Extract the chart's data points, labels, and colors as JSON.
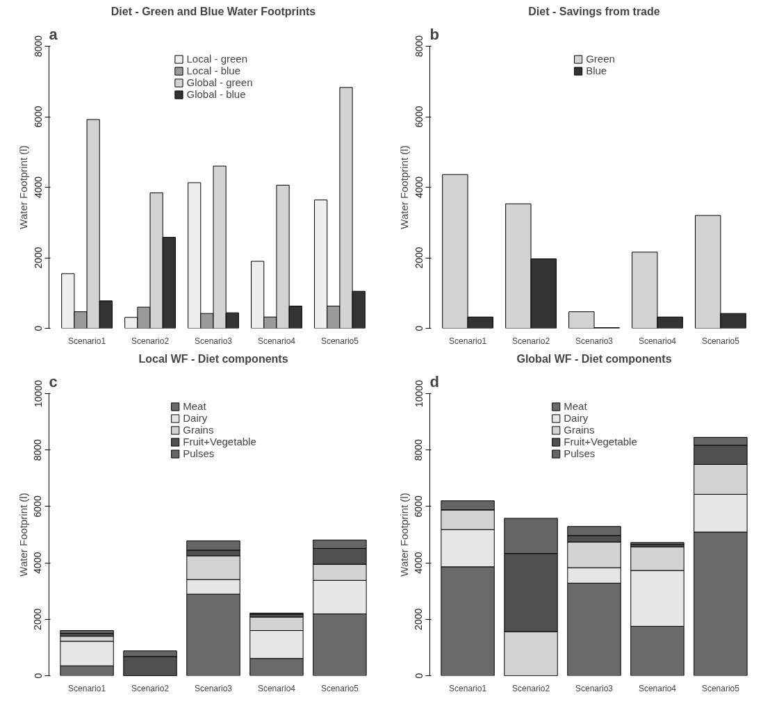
{
  "chart_data": [
    {
      "type": "bar",
      "title": "Diet - Green and Blue Water Footprints",
      "ylabel": "Water Footprint (l)",
      "annotations": [
        "a"
      ],
      "categories": [
        "Scenario1",
        "Scenario2",
        "Scenario3",
        "Scenario4",
        "Scenario5"
      ],
      "ylim": [
        0,
        8000
      ],
      "yticks": [
        0,
        2000,
        4000,
        6000,
        8000
      ],
      "grid": false,
      "legend": "top",
      "series": [
        {
          "name": "Local - green",
          "color": "#eeeeee",
          "values": [
            1550,
            310,
            4130,
            1900,
            3640
          ]
        },
        {
          "name": "Local - blue",
          "color": "#9a9a9a",
          "values": [
            470,
            600,
            420,
            320,
            630
          ]
        },
        {
          "name": "Global - green",
          "color": "#d3d3d3",
          "values": [
            5920,
            3840,
            4600,
            4060,
            6830
          ]
        },
        {
          "name": "Global - blue",
          "color": "#333333",
          "values": [
            780,
            2580,
            440,
            630,
            1050
          ]
        }
      ]
    },
    {
      "type": "bar",
      "title": "Diet - Savings from trade",
      "ylabel": "Water Footprint (l)",
      "annotations": [
        "b"
      ],
      "categories": [
        "Scenario1",
        "Scenario2",
        "Scenario3",
        "Scenario4",
        "Scenario5"
      ],
      "ylim": [
        0,
        8000
      ],
      "yticks": [
        0,
        2000,
        4000,
        6000,
        8000
      ],
      "grid": false,
      "legend": "top",
      "series": [
        {
          "name": "Green",
          "color": "#d3d3d3",
          "values": [
            4360,
            3530,
            470,
            2160,
            3200
          ]
        },
        {
          "name": "Blue",
          "color": "#333333",
          "values": [
            320,
            1970,
            20,
            320,
            420
          ]
        }
      ]
    },
    {
      "type": "bar",
      "stacked": true,
      "title": "Local WF - Diet components",
      "ylabel": "Water Footprint (l)",
      "annotations": [
        "c"
      ],
      "categories": [
        "Scenario1",
        "Scenario2",
        "Scenario3",
        "Scenario4",
        "Scenario5"
      ],
      "ylim": [
        0,
        10000
      ],
      "yticks": [
        0,
        2000,
        4000,
        6000,
        8000,
        10000
      ],
      "grid": false,
      "legend": "top",
      "series": [
        {
          "name": "Meat",
          "color": "#6a6a6a",
          "values": [
            350,
            0,
            2890,
            610,
            2190
          ]
        },
        {
          "name": "Dairy",
          "color": "#e6e6e6",
          "values": [
            870,
            0,
            520,
            990,
            1190
          ]
        },
        {
          "name": "Grains",
          "color": "#d3d3d3",
          "values": [
            180,
            0,
            840,
            480,
            570
          ]
        },
        {
          "name": "Fruit+Vegetable",
          "color": "#505050",
          "values": [
            100,
            680,
            200,
            100,
            560
          ]
        },
        {
          "name": "Pulses",
          "color": "#656565",
          "values": [
            100,
            200,
            330,
            40,
            300
          ]
        }
      ]
    },
    {
      "type": "bar",
      "stacked": true,
      "title": "Global WF - Diet components",
      "ylabel": "Water Footprint (l)",
      "annotations": [
        "d"
      ],
      "categories": [
        "Scenario1",
        "Scenario2",
        "Scenario3",
        "Scenario4",
        "Scenario5"
      ],
      "ylim": [
        0,
        10000
      ],
      "yticks": [
        0,
        2000,
        4000,
        6000,
        8000,
        10000
      ],
      "grid": false,
      "legend": "top",
      "series": [
        {
          "name": "Meat",
          "color": "#6a6a6a",
          "values": [
            3860,
            0,
            3280,
            1750,
            5090
          ]
        },
        {
          "name": "Dairy",
          "color": "#e6e6e6",
          "values": [
            1320,
            0,
            550,
            1980,
            1340
          ]
        },
        {
          "name": "Grains",
          "color": "#d3d3d3",
          "values": [
            700,
            1560,
            910,
            840,
            1060
          ]
        },
        {
          "name": "Fruit+Vegetable",
          "color": "#505050",
          "values": [
            null,
            2770,
            230,
            80,
            680
          ]
        },
        {
          "name": "Pulses",
          "color": "#656565",
          "values": [
            320,
            1250,
            320,
            70,
            280
          ]
        }
      ]
    }
  ]
}
